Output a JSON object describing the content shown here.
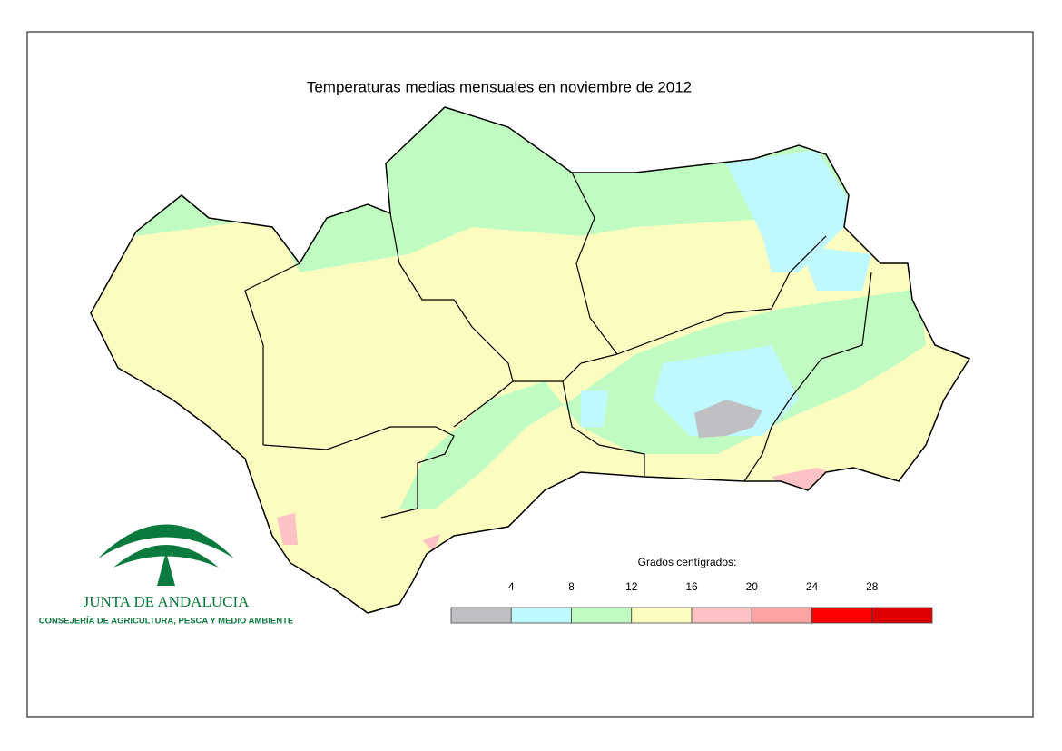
{
  "title": "Temperaturas medias mensuales en noviembre de 2012",
  "legend": {
    "title": "Grados centígrados:",
    "ticks": [
      4,
      8,
      12,
      16,
      20,
      24,
      28
    ],
    "colors": [
      "#c0bfc4",
      "#bff9fd",
      "#c0fcc2",
      "#fdfcc0",
      "#fdc2c4",
      "#fca4a4",
      "#fe0000",
      "#dc0000"
    ]
  },
  "logo": {
    "name": "JUNTA DE ANDALUCIA",
    "department": "CONSEJERÍA DE AGRICULTURA, PESCA Y MEDIO AMBIENTE"
  }
}
